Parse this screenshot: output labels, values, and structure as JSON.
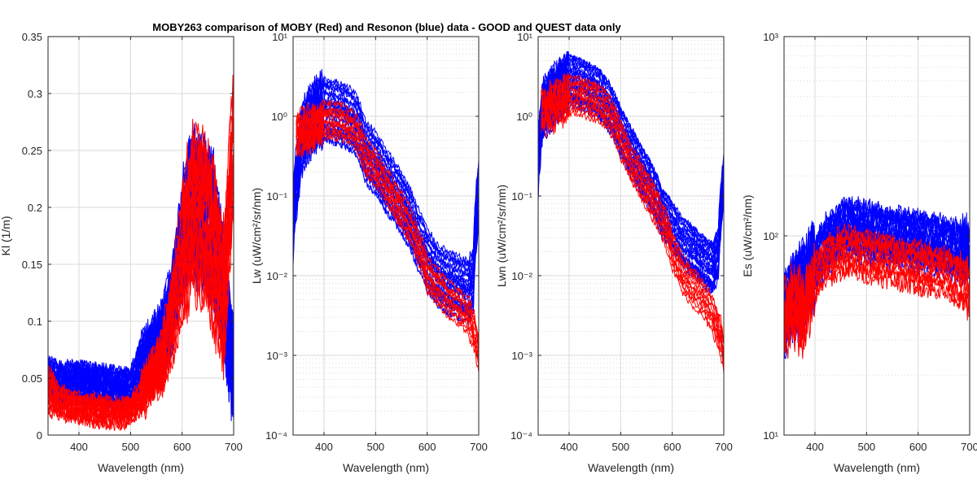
{
  "figure": {
    "title": "MOBY263 comparison of MOBY (Red) and Resonon (blue) data - GOOD and QUEST data only",
    "colors": {
      "moby": "#ff0000",
      "resonon": "#0000ff",
      "grid": "#d9d9d9",
      "axis": "#262626"
    }
  },
  "chart_data": [
    {
      "id": "kl",
      "type": "line",
      "title": "",
      "xlabel": "Wavelength (nm)",
      "ylabel": "Kl (1/m)",
      "yscale": "linear",
      "xlim": [
        340,
        700
      ],
      "ylim": [
        0,
        0.35
      ],
      "xticks": [
        400,
        500,
        600,
        700
      ],
      "xtick_labels": [
        "400",
        "500",
        "600",
        "700"
      ],
      "yticks": [
        0,
        0.05,
        0.1,
        0.15,
        0.2,
        0.25,
        0.3,
        0.35
      ],
      "ytick_labels": [
        "0",
        "0.05",
        "0.1",
        "0.15",
        "0.2",
        "0.25",
        "0.3",
        "0.35"
      ],
      "grid": true,
      "series": [
        {
          "group": "Resonon",
          "color": "#0000ff",
          "count": 34,
          "x": [
            340,
            360,
            380,
            400,
            420,
            440,
            460,
            480,
            500,
            520,
            540,
            560,
            580,
            600,
            620,
            640,
            660,
            680,
            700
          ],
          "y": [
            0.05,
            0.045,
            0.045,
            0.045,
            0.044,
            0.043,
            0.041,
            0.04,
            0.04,
            0.06,
            0.07,
            0.08,
            0.11,
            0.17,
            0.2,
            0.19,
            0.18,
            0.12,
            0.05
          ],
          "spread": [
            0.015,
            0.015,
            0.015,
            0.015,
            0.015,
            0.015,
            0.015,
            0.015,
            0.015,
            0.02,
            0.02,
            0.025,
            0.03,
            0.04,
            0.05,
            0.05,
            0.05,
            0.04,
            0.03
          ]
        },
        {
          "group": "MOBY",
          "color": "#ff0000",
          "count": 18,
          "x": [
            340,
            360,
            380,
            400,
            420,
            440,
            460,
            480,
            500,
            520,
            540,
            560,
            580,
            600,
            620,
            640,
            660,
            680,
            700
          ],
          "y": [
            0.04,
            0.03,
            0.027,
            0.025,
            0.023,
            0.022,
            0.02,
            0.02,
            0.022,
            0.035,
            0.05,
            0.065,
            0.1,
            0.16,
            0.2,
            0.19,
            0.17,
            0.12,
            0.26
          ],
          "spread": [
            0.02,
            0.012,
            0.01,
            0.01,
            0.01,
            0.01,
            0.01,
            0.01,
            0.01,
            0.012,
            0.015,
            0.02,
            0.03,
            0.05,
            0.06,
            0.06,
            0.06,
            0.05,
            0.05
          ]
        }
      ]
    },
    {
      "id": "lw",
      "type": "line",
      "title": "",
      "xlabel": "Wavelength (nm)",
      "ylabel": "Lw (uW/cm²/sr/nm)",
      "yscale": "log",
      "xlim": [
        340,
        700
      ],
      "ylim": [
        0.0001,
        10
      ],
      "xticks": [
        400,
        500,
        600,
        700
      ],
      "xtick_labels": [
        "400",
        "500",
        "600",
        "700"
      ],
      "yticks": [
        0.0001,
        0.001,
        0.01,
        0.1,
        1,
        10
      ],
      "ytick_labels": [
        "10⁻⁴",
        "10⁻³",
        "10⁻²",
        "10⁻¹",
        "10⁰",
        "10¹"
      ],
      "grid": true,
      "series": [
        {
          "group": "Resonon",
          "color": "#0000ff",
          "count": 30,
          "x": [
            340,
            350,
            360,
            380,
            400,
            420,
            440,
            460,
            480,
            500,
            520,
            540,
            560,
            580,
            600,
            620,
            640,
            660,
            680,
            690,
            695,
            700
          ],
          "y": [
            0.04,
            0.2,
            0.6,
            1.0,
            1.2,
            1.1,
            1.0,
            0.8,
            0.35,
            0.25,
            0.15,
            0.1,
            0.06,
            0.03,
            0.015,
            0.01,
            0.008,
            0.007,
            0.006,
            0.009,
            0.05,
            0.1
          ],
          "spread_log": 0.35
        },
        {
          "group": "MOBY",
          "color": "#ff0000",
          "count": 12,
          "x": [
            345,
            360,
            380,
            400,
            420,
            440,
            460,
            480,
            500,
            520,
            540,
            560,
            580,
            600,
            620,
            640,
            660,
            680,
            700
          ],
          "y": [
            0.6,
            0.6,
            0.7,
            0.85,
            0.85,
            0.8,
            0.65,
            0.3,
            0.22,
            0.13,
            0.08,
            0.05,
            0.025,
            0.01,
            0.007,
            0.005,
            0.004,
            0.003,
            0.001
          ],
          "spread_log": 0.2
        }
      ]
    },
    {
      "id": "lwn",
      "type": "line",
      "title": "",
      "xlabel": "Wavelength (nm)",
      "ylabel": "Lwn (uW/cm²/sr/nm)",
      "yscale": "log",
      "xlim": [
        340,
        700
      ],
      "ylim": [
        0.0001,
        10
      ],
      "xticks": [
        400,
        500,
        600,
        700
      ],
      "xtick_labels": [
        "400",
        "500",
        "600",
        "700"
      ],
      "yticks": [
        0.0001,
        0.001,
        0.01,
        0.1,
        1,
        10
      ],
      "ytick_labels": [
        "10⁻⁴",
        "10⁻³",
        "10⁻²",
        "10⁻¹",
        "10⁰",
        "10¹"
      ],
      "grid": true,
      "series": [
        {
          "group": "Resonon",
          "color": "#0000ff",
          "count": 30,
          "x": [
            340,
            350,
            360,
            380,
            400,
            420,
            440,
            460,
            480,
            500,
            520,
            540,
            560,
            580,
            600,
            620,
            640,
            660,
            680,
            690,
            695,
            700
          ],
          "y": [
            0.2,
            1.2,
            1.5,
            2.0,
            2.8,
            2.5,
            2.2,
            1.8,
            1.2,
            0.6,
            0.35,
            0.2,
            0.12,
            0.06,
            0.04,
            0.025,
            0.02,
            0.015,
            0.012,
            0.02,
            0.07,
            0.15
          ],
          "spread_log": 0.3
        },
        {
          "group": "MOBY",
          "color": "#ff0000",
          "count": 12,
          "x": [
            345,
            360,
            380,
            400,
            420,
            440,
            460,
            480,
            500,
            520,
            540,
            560,
            580,
            600,
            620,
            640,
            660,
            680,
            700
          ],
          "y": [
            1.1,
            1.2,
            1.5,
            1.8,
            1.8,
            1.6,
            1.4,
            1.0,
            0.5,
            0.25,
            0.15,
            0.09,
            0.05,
            0.02,
            0.01,
            0.007,
            0.005,
            0.003,
            0.001
          ],
          "spread_log": 0.2
        }
      ]
    },
    {
      "id": "es",
      "type": "line",
      "title": "",
      "xlabel": "Wavelength (nm)",
      "ylabel": "Es (uW/cm²/nm)",
      "yscale": "log",
      "xlim": [
        340,
        700
      ],
      "ylim": [
        10,
        1000
      ],
      "xticks": [
        400,
        500,
        600,
        700
      ],
      "xtick_labels": [
        "400",
        "500",
        "600",
        "700"
      ],
      "yticks": [
        10,
        100,
        1000
      ],
      "ytick_labels": [
        "10¹",
        "10²",
        "10³"
      ],
      "grid": true,
      "series": [
        {
          "group": "Resonon",
          "color": "#0000ff",
          "count": 25,
          "x": [
            340,
            360,
            380,
            400,
            420,
            440,
            460,
            480,
            500,
            520,
            540,
            560,
            580,
            600,
            620,
            640,
            660,
            680,
            700
          ],
          "y": [
            40,
            50,
            55,
            70,
            90,
            100,
            110,
            108,
            105,
            103,
            100,
            98,
            96,
            94,
            92,
            90,
            88,
            85,
            80
          ],
          "spread_log": 0.12
        },
        {
          "group": "MOBY",
          "color": "#ff0000",
          "count": 10,
          "x": [
            340,
            360,
            380,
            400,
            420,
            440,
            460,
            480,
            500,
            520,
            540,
            560,
            580,
            600,
            620,
            640,
            660,
            680,
            700
          ],
          "y": [
            38,
            45,
            40,
            60,
            75,
            80,
            85,
            82,
            80,
            78,
            76,
            74,
            72,
            70,
            68,
            67,
            65,
            60,
            55
          ],
          "spread_log": 0.1
        }
      ]
    }
  ]
}
